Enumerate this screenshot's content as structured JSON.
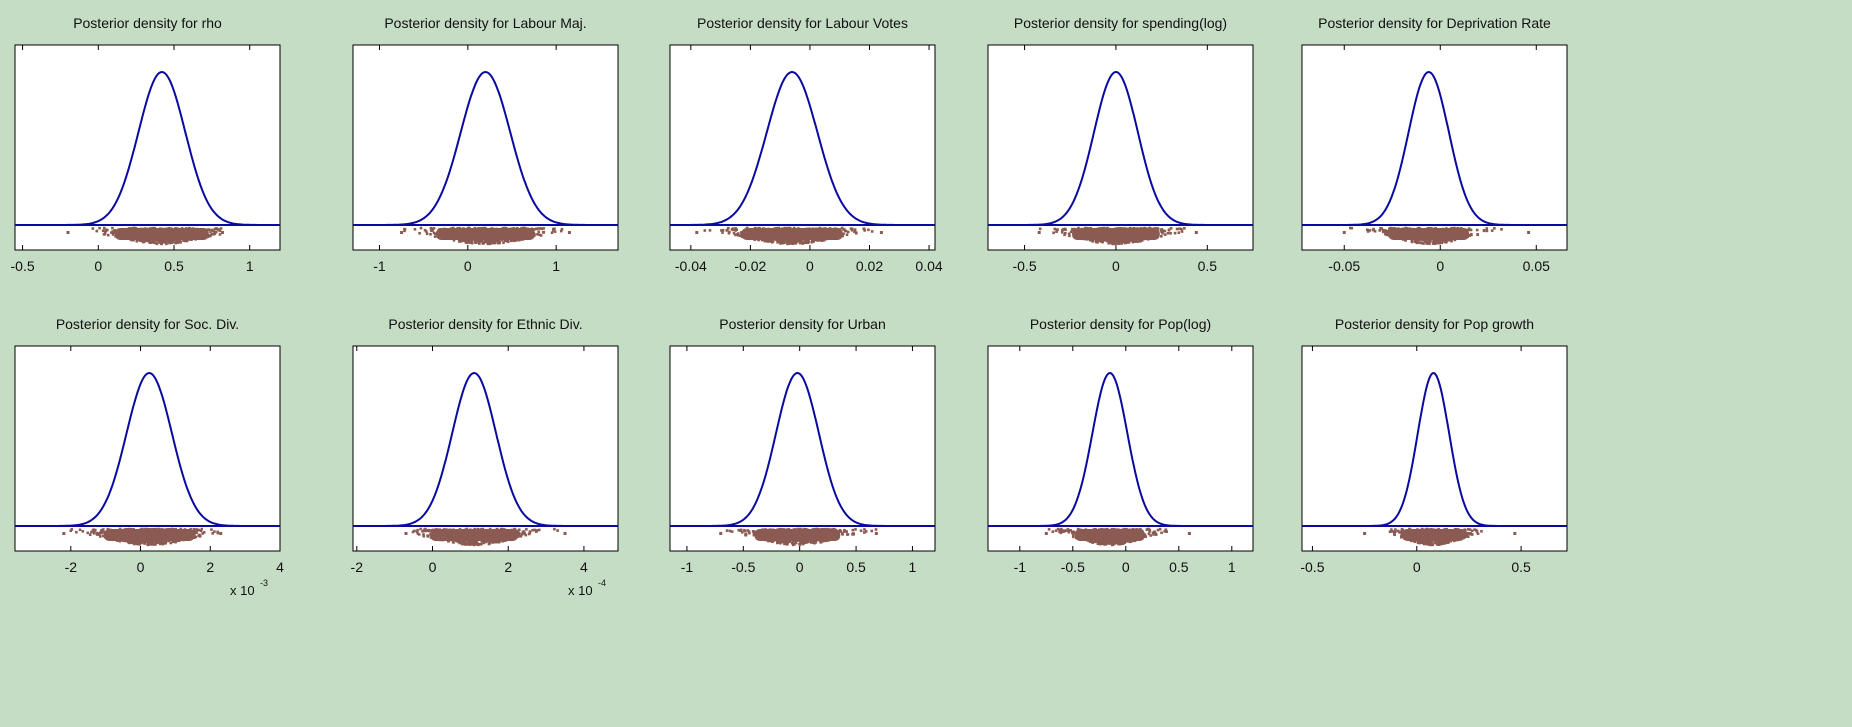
{
  "figure": {
    "background": "#c5dcc5",
    "curve_color": "#0a0aa0",
    "sample_color": "#8b5a52"
  },
  "chart_data": [
    {
      "type": "line",
      "title": "Posterior density for rho",
      "xlim": [
        -0.55,
        1.2
      ],
      "xticks": [
        -0.5,
        0,
        0.5,
        1
      ],
      "tick_labels": [
        "-0.5",
        "0",
        "0.5",
        "1"
      ],
      "mean": 0.42,
      "sd": 0.155,
      "scatter_range": [
        -0.2,
        0.82
      ],
      "multiplier": ""
    },
    {
      "type": "line",
      "title": "Posterior density for Labour Maj.",
      "xlim": [
        -1.3,
        1.7
      ],
      "xticks": [
        -1,
        0,
        1
      ],
      "tick_labels": [
        "-1",
        "0",
        "1"
      ],
      "mean": 0.2,
      "sd": 0.28,
      "scatter_range": [
        -0.75,
        1.15
      ],
      "multiplier": ""
    },
    {
      "type": "line",
      "title": "Posterior density for Labour Votes",
      "xlim": [
        -0.047,
        0.042
      ],
      "xticks": [
        -0.04,
        -0.02,
        0,
        0.02,
        0.04
      ],
      "tick_labels": [
        "-0.04",
        "-0.02",
        "0",
        "0.02",
        "0.04"
      ],
      "mean": -0.006,
      "sd": 0.0085,
      "scatter_range": [
        -0.038,
        0.024
      ],
      "multiplier": ""
    },
    {
      "type": "line",
      "title": "Posterior density for spending(log)",
      "xlim": [
        -0.7,
        0.75
      ],
      "xticks": [
        -0.5,
        0,
        0.5
      ],
      "tick_labels": [
        "-0.5",
        "0",
        "0.5"
      ],
      "mean": 0.0,
      "sd": 0.12,
      "scatter_range": [
        -0.42,
        0.44
      ],
      "multiplier": ""
    },
    {
      "type": "line",
      "title": "Posterior density for Deprivation Rate",
      "xlim": [
        -0.072,
        0.066
      ],
      "xticks": [
        -0.05,
        0,
        0.05
      ],
      "tick_labels": [
        "-0.05",
        "0",
        "0.05"
      ],
      "mean": -0.006,
      "sd": 0.0105,
      "scatter_range": [
        -0.05,
        0.046
      ],
      "multiplier": ""
    },
    {
      "type": "line",
      "title": "Posterior density for Soc. Div.",
      "xlim": [
        -3.6,
        4.0
      ],
      "xticks": [
        -2,
        0,
        2,
        4
      ],
      "tick_labels": [
        "-2",
        "0",
        "2",
        "4"
      ],
      "mean": 0.25,
      "sd": 0.65,
      "scatter_range": [
        -2.2,
        2.3
      ],
      "multiplier": "x 10",
      "multiplier_exp": "-3"
    },
    {
      "type": "line",
      "title": "Posterior density for Ethnic Div.",
      "xlim": [
        -2.1,
        4.9
      ],
      "xticks": [
        -2,
        0,
        2,
        4
      ],
      "tick_labels": [
        "-2",
        "0",
        "2",
        "4"
      ],
      "mean": 1.1,
      "sd": 0.58,
      "scatter_range": [
        -0.7,
        3.5
      ],
      "multiplier": "x 10",
      "multiplier_exp": "-4"
    },
    {
      "type": "line",
      "title": "Posterior density for Urban",
      "xlim": [
        -1.15,
        1.2
      ],
      "xticks": [
        -1,
        -0.5,
        0,
        0.5,
        1
      ],
      "tick_labels": [
        "-1",
        "-0.5",
        "0",
        "0.5",
        "1"
      ],
      "mean": -0.02,
      "sd": 0.19,
      "scatter_range": [
        -0.7,
        0.68
      ],
      "multiplier": ""
    },
    {
      "type": "line",
      "title": "Posterior density for Pop(log)",
      "xlim": [
        -1.3,
        1.2
      ],
      "xticks": [
        -1,
        -0.5,
        0,
        0.5,
        1
      ],
      "tick_labels": [
        "-1",
        "-0.5",
        "0",
        "0.5",
        "1"
      ],
      "mean": -0.15,
      "sd": 0.165,
      "scatter_range": [
        -0.75,
        0.6
      ],
      "multiplier": ""
    },
    {
      "type": "line",
      "title": "Posterior density for Pop growth",
      "xlim": [
        -0.55,
        0.72
      ],
      "xticks": [
        -0.5,
        0,
        0.5
      ],
      "tick_labels": [
        "-0.5",
        "0",
        "0.5"
      ],
      "mean": 0.08,
      "sd": 0.075,
      "scatter_range": [
        -0.25,
        0.47
      ],
      "multiplier": ""
    }
  ]
}
